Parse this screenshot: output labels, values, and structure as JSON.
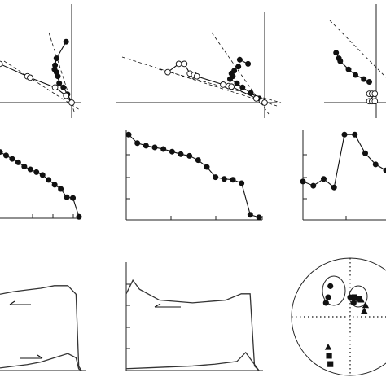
{
  "figure": {
    "panels": [
      {
        "id": "zijderveld-1",
        "type": "orthogonal-vector-plot"
      },
      {
        "id": "zijderveld-2",
        "type": "orthogonal-vector-plot"
      },
      {
        "id": "zijderveld-3",
        "type": "orthogonal-vector-plot"
      },
      {
        "id": "decay-1",
        "type": "demagnetization-curve"
      },
      {
        "id": "decay-2",
        "type": "demagnetization-curve"
      },
      {
        "id": "decay-3",
        "type": "demagnetization-curve"
      },
      {
        "id": "thermomag-1",
        "type": "thermomagnetic-curve"
      },
      {
        "id": "thermomag-2",
        "type": "thermomagnetic-curve"
      },
      {
        "id": "stereonet",
        "type": "equal-area-projection"
      }
    ]
  },
  "chart_data": [
    {
      "type": "scatter",
      "panel": "zijderveld-1",
      "series": [
        {
          "marker": "filled",
          "x": [
            -0.2,
            -0.55,
            -0.6,
            -0.62,
            -0.55,
            -0.5,
            -0.45,
            -0.3,
            -0.15,
            0.0
          ],
          "y": [
            2.2,
            1.6,
            1.35,
            1.2,
            1.1,
            0.95,
            0.7,
            0.55,
            0.3,
            0.0
          ]
        },
        {
          "marker": "open",
          "x": [
            -2.6,
            -1.6,
            -1.5,
            -0.6,
            -0.2,
            0.0
          ],
          "y": [
            1.4,
            0.95,
            0.9,
            0.55,
            0.25,
            0.0
          ]
        }
      ]
    },
    {
      "type": "scatter",
      "panel": "zijderveld-2",
      "series": [
        {
          "marker": "filled",
          "x": [
            -0.6,
            -0.9,
            -0.95,
            -1.1,
            -1.2,
            -1.15,
            -1.25,
            -1.0,
            -0.8,
            -0.5,
            -0.2,
            0.0
          ],
          "y": [
            1.4,
            1.55,
            1.3,
            1.15,
            1.05,
            0.95,
            0.85,
            0.7,
            0.55,
            0.35,
            0.15,
            0.0
          ]
        },
        {
          "marker": "open",
          "x": [
            -3.5,
            -3.1,
            -2.9,
            -2.7,
            -2.55,
            -2.45,
            -1.5,
            -1.3,
            -1.2,
            -0.3,
            -0.1,
            0.0
          ],
          "y": [
            1.1,
            1.4,
            1.4,
            1.05,
            1.0,
            0.95,
            0.65,
            0.6,
            0.58,
            0.15,
            0.05,
            0.0
          ]
        }
      ]
    },
    {
      "type": "scatter",
      "panel": "zijderveld-3",
      "series": [
        {
          "marker": "filled",
          "x": [
            -1.45,
            -1.35,
            -1.3,
            -1.0,
            -0.75,
            -0.45,
            -0.25
          ],
          "y": [
            1.8,
            1.6,
            1.5,
            1.2,
            1.0,
            0.85,
            0.75
          ]
        },
        {
          "marker": "open",
          "x": [
            -0.25,
            -0.15,
            -0.05,
            -0.25,
            -0.15,
            -0.05
          ],
          "y": [
            0.32,
            0.32,
            0.32,
            0.05,
            0.05,
            0.05
          ]
        }
      ]
    },
    {
      "type": "line",
      "panel": "decay-1",
      "x": [
        0,
        1,
        2,
        3,
        4,
        5,
        6,
        7,
        8,
        9,
        10,
        11,
        12,
        13
      ],
      "y": [
        0.95,
        0.9,
        0.85,
        0.8,
        0.74,
        0.7,
        0.66,
        0.62,
        0.55,
        0.48,
        0.42,
        0.3,
        0.29,
        0.02
      ],
      "ylim": [
        0,
        1.05
      ]
    },
    {
      "type": "line",
      "panel": "decay-2",
      "x": [
        0,
        1,
        2,
        3,
        4,
        5,
        6,
        7,
        8,
        9,
        10,
        11,
        12,
        13,
        14,
        15
      ],
      "y": [
        1.0,
        0.9,
        0.87,
        0.85,
        0.83,
        0.8,
        0.77,
        0.75,
        0.7,
        0.62,
        0.5,
        0.48,
        0.47,
        0.43,
        0.06,
        0.03
      ],
      "ylim": [
        0,
        1.05
      ]
    },
    {
      "type": "line",
      "panel": "decay-3",
      "x": [
        0,
        1,
        2,
        3,
        4,
        5,
        6,
        7,
        8
      ],
      "y": [
        0.45,
        0.4,
        0.48,
        0.38,
        1.0,
        1.0,
        0.78,
        0.65,
        0.58
      ],
      "ylim": [
        0,
        1.05
      ]
    },
    {
      "type": "line",
      "panel": "thermomag-1",
      "series": [
        {
          "x": [
            0,
            100,
            200,
            300,
            400,
            500,
            560,
            580,
            600
          ],
          "y": [
            0.9,
            0.93,
            0.95,
            0.97,
            1.0,
            1.0,
            0.9,
            0.05,
            0.0
          ]
        },
        {
          "x": [
            0,
            100,
            200,
            300,
            400,
            500,
            560,
            580,
            600
          ],
          "y": [
            0.03,
            0.05,
            0.07,
            0.1,
            0.15,
            0.2,
            0.15,
            0.02,
            0.0
          ]
        }
      ],
      "ylim": [
        0,
        1.2
      ]
    },
    {
      "type": "line",
      "panel": "thermomag-2",
      "series": [
        {
          "x": [
            0,
            30,
            60,
            150,
            300,
            450,
            520,
            560,
            580,
            600
          ],
          "y": [
            0.85,
            1.0,
            0.9,
            0.78,
            0.75,
            0.78,
            0.85,
            0.85,
            0.05,
            0.0
          ]
        },
        {
          "x": [
            0,
            100,
            200,
            300,
            400,
            500,
            540,
            570,
            600
          ],
          "y": [
            0.02,
            0.03,
            0.04,
            0.05,
            0.07,
            0.1,
            0.2,
            0.1,
            0.0
          ]
        }
      ],
      "ylim": [
        0,
        1.2
      ]
    },
    {
      "type": "scatter",
      "panel": "stereonet",
      "series": [
        {
          "marker": "circle",
          "x": [
            -0.55,
            -0.5,
            -0.45,
            0.0,
            0.08
          ],
          "y": [
            0.25,
            0.35,
            0.55,
            0.35,
            0.25
          ]
        },
        {
          "marker": "square",
          "x": [
            0.1,
            0.2,
            -0.48,
            -0.45
          ],
          "y": [
            0.35,
            0.32,
            -0.7,
            -0.85
          ]
        },
        {
          "marker": "triangle",
          "x": [
            0.25,
            0.32,
            0.35,
            -0.5
          ],
          "y": [
            0.3,
            0.1,
            0.2,
            -0.55
          ]
        }
      ]
    }
  ]
}
